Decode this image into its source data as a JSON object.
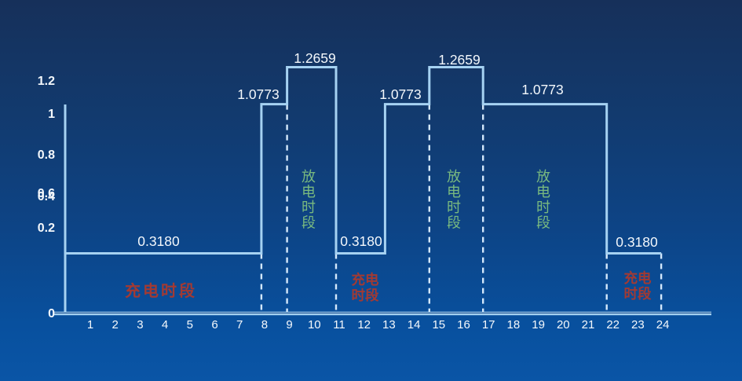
{
  "colors": {
    "line": "#a6d2f2",
    "axis": "#a6d2f2",
    "axis_inner": "#1d4e8c",
    "text": "#f4f8fc",
    "charging_label": "#a23a33",
    "discharging_label": "#79b97f"
  },
  "chart_data": {
    "type": "line",
    "line_style": "step",
    "title": "",
    "xlabel": "",
    "ylabel": "",
    "x_tick_labels": [
      "1",
      "2",
      "3",
      "4",
      "5",
      "6",
      "7",
      "8",
      "9",
      "10",
      "11",
      "12",
      "13",
      "14",
      "15",
      "16",
      "17",
      "18",
      "19",
      "20",
      "21",
      "22",
      "23",
      "24"
    ],
    "y_tick_labels": [
      "1.2",
      "1",
      "0.8",
      "0.6",
      "0.4",
      "0.2",
      "0"
    ],
    "ylim": [
      0,
      1.4
    ],
    "grid": false,
    "legend": null,
    "segments": [
      {
        "start_hour": 0,
        "end_hour": 8,
        "price": 0.318,
        "label": "0.3180"
      },
      {
        "start_hour": 8,
        "end_hour": 9,
        "price": 1.0773,
        "label": "1.0773"
      },
      {
        "start_hour": 9,
        "end_hour": 11,
        "price": 1.2659,
        "label": "1.2659"
      },
      {
        "start_hour": 11,
        "end_hour": 13,
        "price": 0.318,
        "label": "0.3180"
      },
      {
        "start_hour": 13,
        "end_hour": 15,
        "price": 1.0773,
        "label": "1.0773"
      },
      {
        "start_hour": 15,
        "end_hour": 17,
        "price": 1.2659,
        "label": "1.2659"
      },
      {
        "start_hour": 17,
        "end_hour": 22,
        "price": 1.0773,
        "label": "1.0773"
      },
      {
        "start_hour": 22,
        "end_hour": 24,
        "price": 0.318,
        "label": "0.3180"
      }
    ],
    "period_annotations": [
      {
        "text": "充电时段",
        "kind": "charging",
        "orientation": "horizontal"
      },
      {
        "text": "放电时段",
        "kind": "discharging",
        "orientation": "vertical"
      },
      {
        "text": "充电时段",
        "kind": "charging",
        "orientation": "two-line"
      },
      {
        "text": "放电时段",
        "kind": "discharging",
        "orientation": "vertical"
      },
      {
        "text": "放电时段",
        "kind": "discharging",
        "orientation": "vertical"
      },
      {
        "text": "充电时段",
        "kind": "charging",
        "orientation": "two-line"
      }
    ]
  }
}
